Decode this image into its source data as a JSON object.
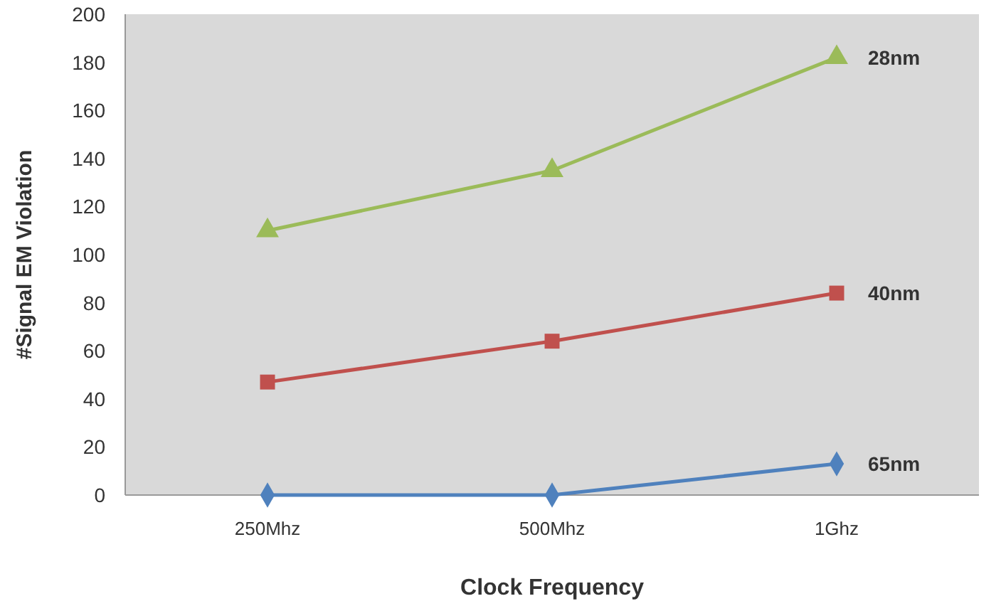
{
  "chart_data": {
    "type": "line",
    "xlabel": "Clock Frequency",
    "ylabel": "#Signal EM Violation",
    "categories": [
      "250Mhz",
      "500Mhz",
      "1Ghz"
    ],
    "ylim": [
      0,
      200
    ],
    "yticks": [
      0,
      20,
      40,
      60,
      80,
      100,
      120,
      140,
      160,
      180,
      200
    ],
    "grid": false,
    "series": [
      {
        "name": "28nm",
        "color": "#9bbb59",
        "marker": "triangle",
        "values": [
          110,
          135,
          182
        ]
      },
      {
        "name": "40nm",
        "color": "#c0504d",
        "marker": "square",
        "values": [
          47,
          64,
          84
        ]
      },
      {
        "name": "65nm",
        "color": "#4f81bd",
        "marker": "diamond",
        "values": [
          0,
          0,
          13
        ]
      }
    ]
  }
}
